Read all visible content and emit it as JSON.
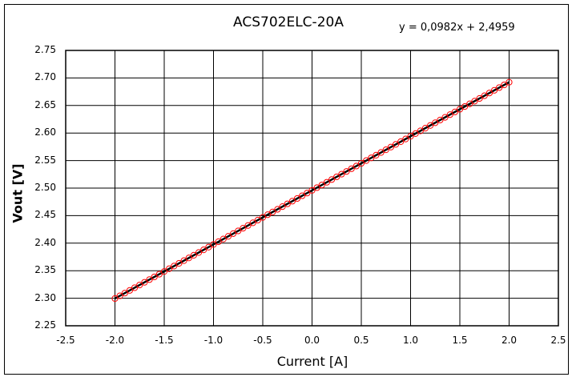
{
  "chart_data": {
    "type": "scatter",
    "title": "ACS702ELC-20A",
    "xlabel": "Current [A]",
    "ylabel": "Vout [V]",
    "xlim": [
      -2.5,
      2.5
    ],
    "ylim": [
      2.25,
      2.75
    ],
    "grid": true,
    "x_ticks": [
      "-2.5",
      "-2.0",
      "-1.5",
      "-1.0",
      "-0.5",
      "0.0",
      "0.5",
      "1.0",
      "1.5",
      "2.0",
      "2.5"
    ],
    "y_ticks": [
      "2.75",
      "2.70",
      "2.65",
      "2.60",
      "2.55",
      "2.50",
      "2.45",
      "2.40",
      "2.35",
      "2.30",
      "2.25"
    ],
    "trendline": {
      "type": "linear",
      "slope": 0.0982,
      "intercept": 2.4959,
      "label": "y = 0,0982x + 2,4959",
      "color": "#000000"
    },
    "series": [
      {
        "name": "Vout",
        "marker": "open-circle",
        "color": "#ff0000",
        "x_start": -2.0,
        "x_end": 2.0,
        "x_step": 0.05,
        "note_values": "y approx 0.0982*x + 2.4959",
        "sample_points": [
          {
            "x": -2.0,
            "y": 2.3
          },
          {
            "x": -1.5,
            "y": 2.349
          },
          {
            "x": -1.0,
            "y": 2.398
          },
          {
            "x": -0.5,
            "y": 2.447
          },
          {
            "x": 0.0,
            "y": 2.496
          },
          {
            "x": 0.5,
            "y": 2.545
          },
          {
            "x": 1.0,
            "y": 2.594
          },
          {
            "x": 1.5,
            "y": 2.643
          },
          {
            "x": 2.0,
            "y": 2.692
          }
        ]
      }
    ]
  }
}
